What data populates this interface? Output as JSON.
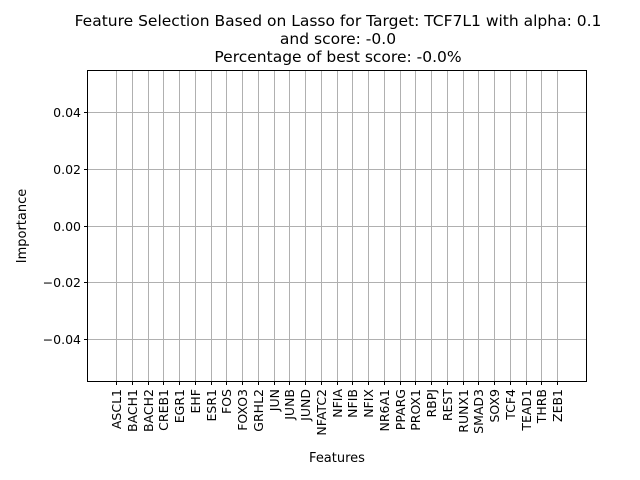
{
  "chart_data": {
    "type": "bar",
    "title": [
      "Feature Selection Based on Lasso for Target: TCF7L1 with alpha: 0.1",
      "and score: -0.0",
      "Percentage of best score: -0.0%"
    ],
    "xlabel": "Features",
    "ylabel": "Importance",
    "categories": [
      "ASCL1",
      "BACH1",
      "BACH2",
      "CREB1",
      "EGR1",
      "EHF",
      "ESR1",
      "FOS",
      "FOXO3",
      "GRHL2",
      "JUN",
      "JUNB",
      "JUND",
      "NFATC2",
      "NFIA",
      "NFIB",
      "NFIX",
      "NR6A1",
      "PPARG",
      "PROX1",
      "RBPJ",
      "REST",
      "RUNX1",
      "SMAD3",
      "SOX9",
      "TCF4",
      "TEAD1",
      "THRB",
      "ZEB1"
    ],
    "values": [
      0,
      0,
      0,
      0,
      0,
      0,
      0,
      0,
      0,
      0,
      0,
      0,
      0,
      0,
      0,
      0,
      0,
      0,
      0,
      0,
      0,
      0,
      0,
      0,
      0,
      0,
      0,
      0,
      0
    ],
    "ylim": [
      -0.055,
      0.055
    ],
    "yticks": [
      0.04,
      0.02,
      0.0,
      -0.02,
      -0.04
    ],
    "ytick_labels": [
      "0.04",
      "0.02",
      "0.00",
      "−0.02",
      "−0.04"
    ],
    "grid": true,
    "colors": {
      "grid": "#b0b0b0",
      "bar": "#1f77b4"
    }
  }
}
